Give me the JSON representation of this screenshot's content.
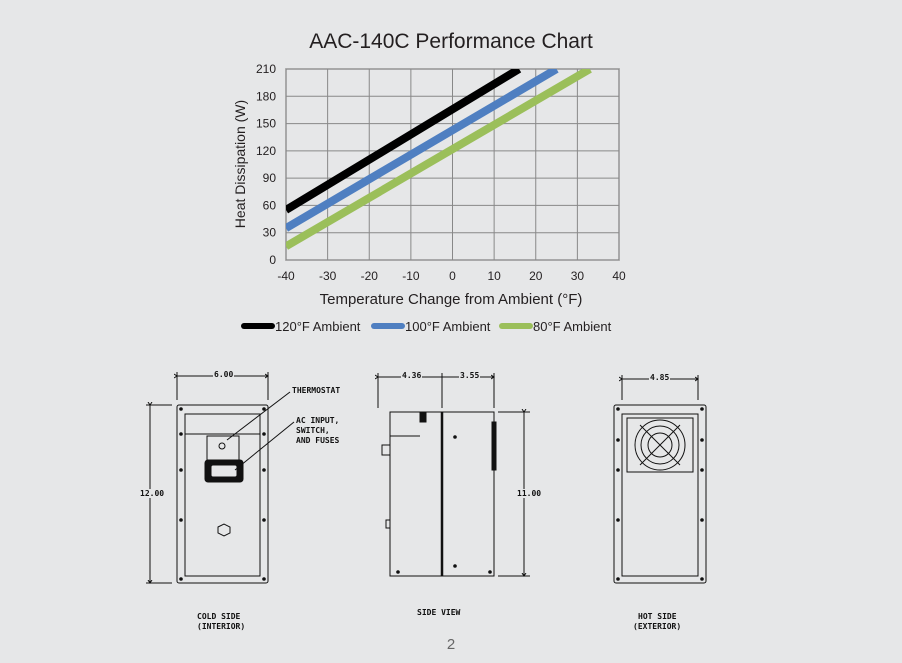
{
  "chart_data": {
    "type": "line",
    "title": "AAC-140C Performance Chart",
    "xlabel": "Temperature Change from Ambient (°F)",
    "ylabel": "Heat Dissipation (W)",
    "xlim": [
      -40,
      40
    ],
    "ylim": [
      0,
      210
    ],
    "x_ticks": [
      -40,
      -30,
      -20,
      -10,
      0,
      10,
      20,
      30,
      40
    ],
    "y_ticks": [
      0,
      30,
      60,
      90,
      120,
      150,
      180,
      210
    ],
    "grid": true,
    "legend_position": "bottom",
    "series": [
      {
        "name": "120°F Ambient",
        "color": "#000000",
        "x": [
          -40,
          16
        ],
        "y": [
          55,
          210
        ]
      },
      {
        "name": "100°F Ambient",
        "color": "#4f7fc1",
        "x": [
          -40,
          25
        ],
        "y": [
          35,
          210
        ]
      },
      {
        "name": "80°F Ambient",
        "color": "#9bbf5a",
        "x": [
          -40,
          33
        ],
        "y": [
          15,
          210
        ]
      }
    ]
  },
  "drawings": {
    "cold_side": {
      "width_dim": "6.00",
      "height_dim": "12.00",
      "caption_line1": "COLD SIDE",
      "caption_line2": "(INTERIOR)",
      "callout_thermostat": "THERMOSTAT",
      "callout_ac_line1": "AC INPUT,",
      "callout_ac_line2": "SWITCH,",
      "callout_ac_line3": "AND FUSES"
    },
    "side_view": {
      "dim_left": "4.36",
      "dim_right": "3.55",
      "height_dim": "11.00",
      "caption": "SIDE VIEW"
    },
    "hot_side": {
      "width_dim": "4.85",
      "caption_line1": "HOT SIDE",
      "caption_line2": "(EXTERIOR)"
    }
  },
  "page_number": "2"
}
